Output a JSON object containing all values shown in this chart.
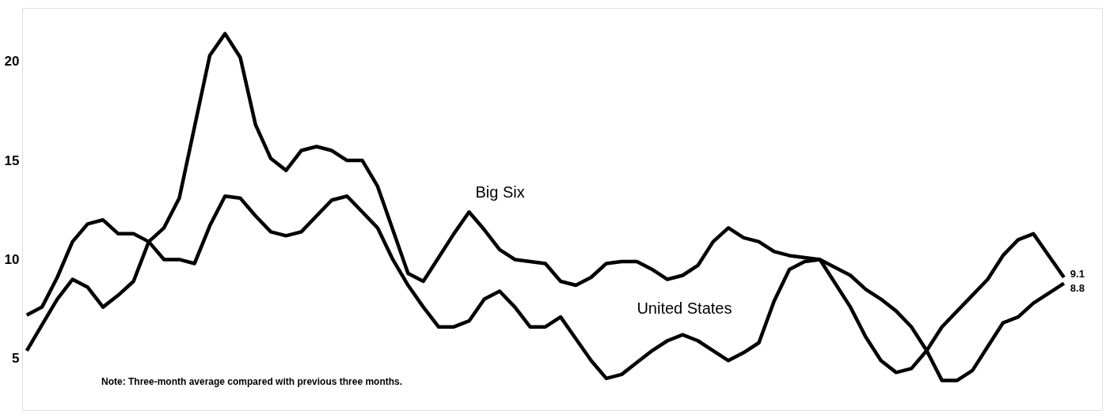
{
  "chart_data": {
    "type": "line",
    "categories": [
      null,
      null,
      null,
      null,
      null,
      null,
      null,
      null,
      null,
      null,
      null,
      null,
      null,
      null,
      null,
      null,
      null,
      null,
      null,
      null,
      null,
      null,
      null,
      null,
      null,
      null,
      null,
      null,
      null,
      null,
      null,
      null,
      null,
      null,
      null,
      null,
      null,
      null,
      null,
      null,
      null,
      null,
      null,
      null,
      null,
      null,
      null,
      null,
      null,
      null,
      null,
      null,
      null,
      null,
      null,
      null,
      null,
      null,
      null,
      null,
      null,
      null,
      null,
      null,
      null,
      null,
      null,
      null,
      null
    ],
    "series": [
      {
        "name": "Big Six",
        "color": "#000000",
        "values": [
          5.4,
          6.7,
          8.0,
          9.0,
          8.6,
          7.6,
          8.2,
          8.9,
          10.9,
          11.6,
          13.1,
          16.7,
          20.3,
          21.4,
          20.2,
          16.8,
          15.1,
          14.5,
          15.5,
          15.7,
          15.5,
          15.0,
          15.0,
          13.7,
          11.5,
          9.3,
          8.9,
          10.1,
          11.3,
          12.4,
          11.5,
          10.5,
          10.0,
          9.9,
          9.8,
          8.9,
          8.7,
          9.1,
          9.8,
          9.9,
          9.9,
          9.5,
          9.0,
          9.2,
          9.7,
          10.9,
          11.6,
          11.1,
          10.9,
          10.4,
          10.2,
          10.1,
          10.0,
          8.8,
          7.6,
          6.1,
          4.9,
          4.3,
          4.5,
          5.4,
          6.6,
          7.4,
          8.2,
          9.0,
          10.2,
          11.0,
          11.3,
          10.2,
          9.1
        ],
        "value_labels": [
          null,
          null,
          null,
          null,
          null,
          null,
          null,
          null,
          null,
          null,
          null,
          null,
          null,
          null,
          null,
          null,
          null,
          null,
          null,
          null,
          null,
          null,
          null,
          null,
          null,
          null,
          null,
          null,
          null,
          null,
          null,
          null,
          null,
          null,
          null,
          null,
          null,
          null,
          null,
          null,
          null,
          null,
          null,
          null,
          null,
          null,
          null,
          null,
          null,
          null,
          null,
          null,
          null,
          null,
          null,
          null,
          null,
          null,
          null,
          null,
          null,
          null,
          null,
          null,
          null,
          null,
          null,
          null,
          "9.1"
        ]
      },
      {
        "name": "United States",
        "color": "#000000",
        "values": [
          7.2,
          7.6,
          9.1,
          10.9,
          11.8,
          12.0,
          11.3,
          11.3,
          10.9,
          10.0,
          10.0,
          9.8,
          11.7,
          13.2,
          13.1,
          12.2,
          11.4,
          11.2,
          11.4,
          12.2,
          13.0,
          13.2,
          12.4,
          11.6,
          10.0,
          8.7,
          7.6,
          6.6,
          6.6,
          6.9,
          8.0,
          8.4,
          7.6,
          6.6,
          6.6,
          7.1,
          6.0,
          4.9,
          4.0,
          4.2,
          4.8,
          5.4,
          5.9,
          6.2,
          5.9,
          5.4,
          4.9,
          5.3,
          5.8,
          7.9,
          9.5,
          9.9,
          10.0,
          9.6,
          9.2,
          8.5,
          8.0,
          7.4,
          6.6,
          5.4,
          3.9,
          3.9,
          4.4,
          5.6,
          6.8,
          7.1,
          7.8,
          8.3,
          8.8
        ],
        "value_labels": [
          null,
          null,
          null,
          null,
          null,
          null,
          null,
          null,
          null,
          null,
          null,
          null,
          null,
          null,
          null,
          null,
          null,
          null,
          null,
          null,
          null,
          null,
          null,
          null,
          null,
          null,
          null,
          null,
          null,
          null,
          null,
          null,
          null,
          null,
          null,
          null,
          null,
          null,
          null,
          null,
          null,
          null,
          null,
          null,
          null,
          null,
          null,
          null,
          null,
          null,
          null,
          null,
          null,
          null,
          null,
          null,
          null,
          null,
          null,
          null,
          null,
          null,
          null,
          null,
          null,
          null,
          null,
          null,
          "8.8"
        ]
      }
    ],
    "ylim": [
      2.4,
      22.7
    ],
    "yticks": [
      5,
      10,
      15,
      20
    ],
    "line_style": "solid",
    "annotations": [
      "Note: Three-month average compared with previous three months."
    ]
  }
}
